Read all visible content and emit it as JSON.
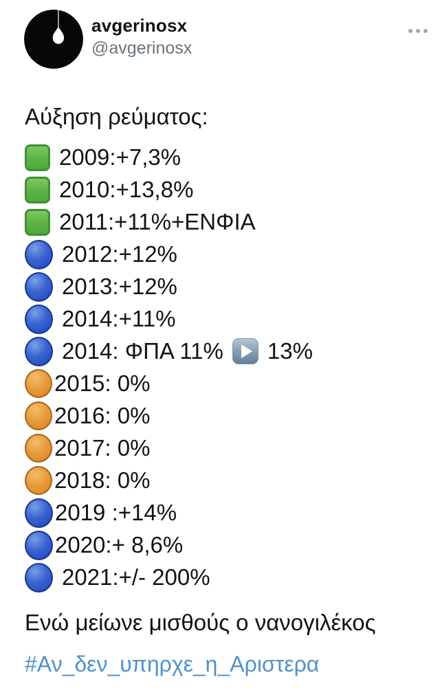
{
  "header": {
    "display_name": "avgerinosx",
    "handle": "@avgerinosx",
    "avatar_icon": "hanging-lightbulb-on-black",
    "more_menu_icon": "ellipsis-three-dots"
  },
  "tweet": {
    "title": "Αύξηση ρεύματος:",
    "rows": [
      {
        "icon": "green-square",
        "text": "2009:+7,3%",
        "spaced": true
      },
      {
        "icon": "green-square",
        "text": "2010:+13,8%",
        "spaced": true
      },
      {
        "icon": "green-square",
        "text": "2011:+11%+ΕΝΦΙΑ",
        "spaced": true
      },
      {
        "icon": "blue-circle",
        "text": "2012:+12%",
        "spaced": true
      },
      {
        "icon": "blue-circle",
        "text": "2013:+12%",
        "spaced": true
      },
      {
        "icon": "blue-circle",
        "text": "2014:+11%",
        "spaced": true
      },
      {
        "icon": "blue-circle",
        "text": "2014: ΦΠΑ 11%",
        "spaced": true,
        "play_icon": "play-button",
        "text_after": "13%"
      },
      {
        "icon": "orange-circle",
        "text": "2015: 0%",
        "spaced": false
      },
      {
        "icon": "orange-circle",
        "text": "2016: 0%",
        "spaced": false
      },
      {
        "icon": "orange-circle",
        "text": "2017: 0%",
        "spaced": false
      },
      {
        "icon": "orange-circle",
        "text": "2018: 0%",
        "spaced": false
      },
      {
        "icon": "blue-circle",
        "text": "2019 :+14%",
        "spaced": false
      },
      {
        "icon": "blue-circle",
        "text": "2020:+ 8,6%",
        "spaced": false
      },
      {
        "icon": "blue-circle",
        "text": "2021:+/- 200%",
        "spaced": true
      }
    ],
    "closing": "Ενώ μείωνε μισθούς ο νανογιλέκος",
    "hashtag": "#Αν_δεν_υπηρχε_η_Αριστερα"
  },
  "colors": {
    "body_text": "#111418",
    "handle_gray": "#68747e",
    "hashtag_blue": "#4f92c8",
    "green_square": "#5cb246",
    "blue_circle": "#2b57c8",
    "orange_circle": "#e08f2c",
    "play_button": "#87a0b2"
  }
}
